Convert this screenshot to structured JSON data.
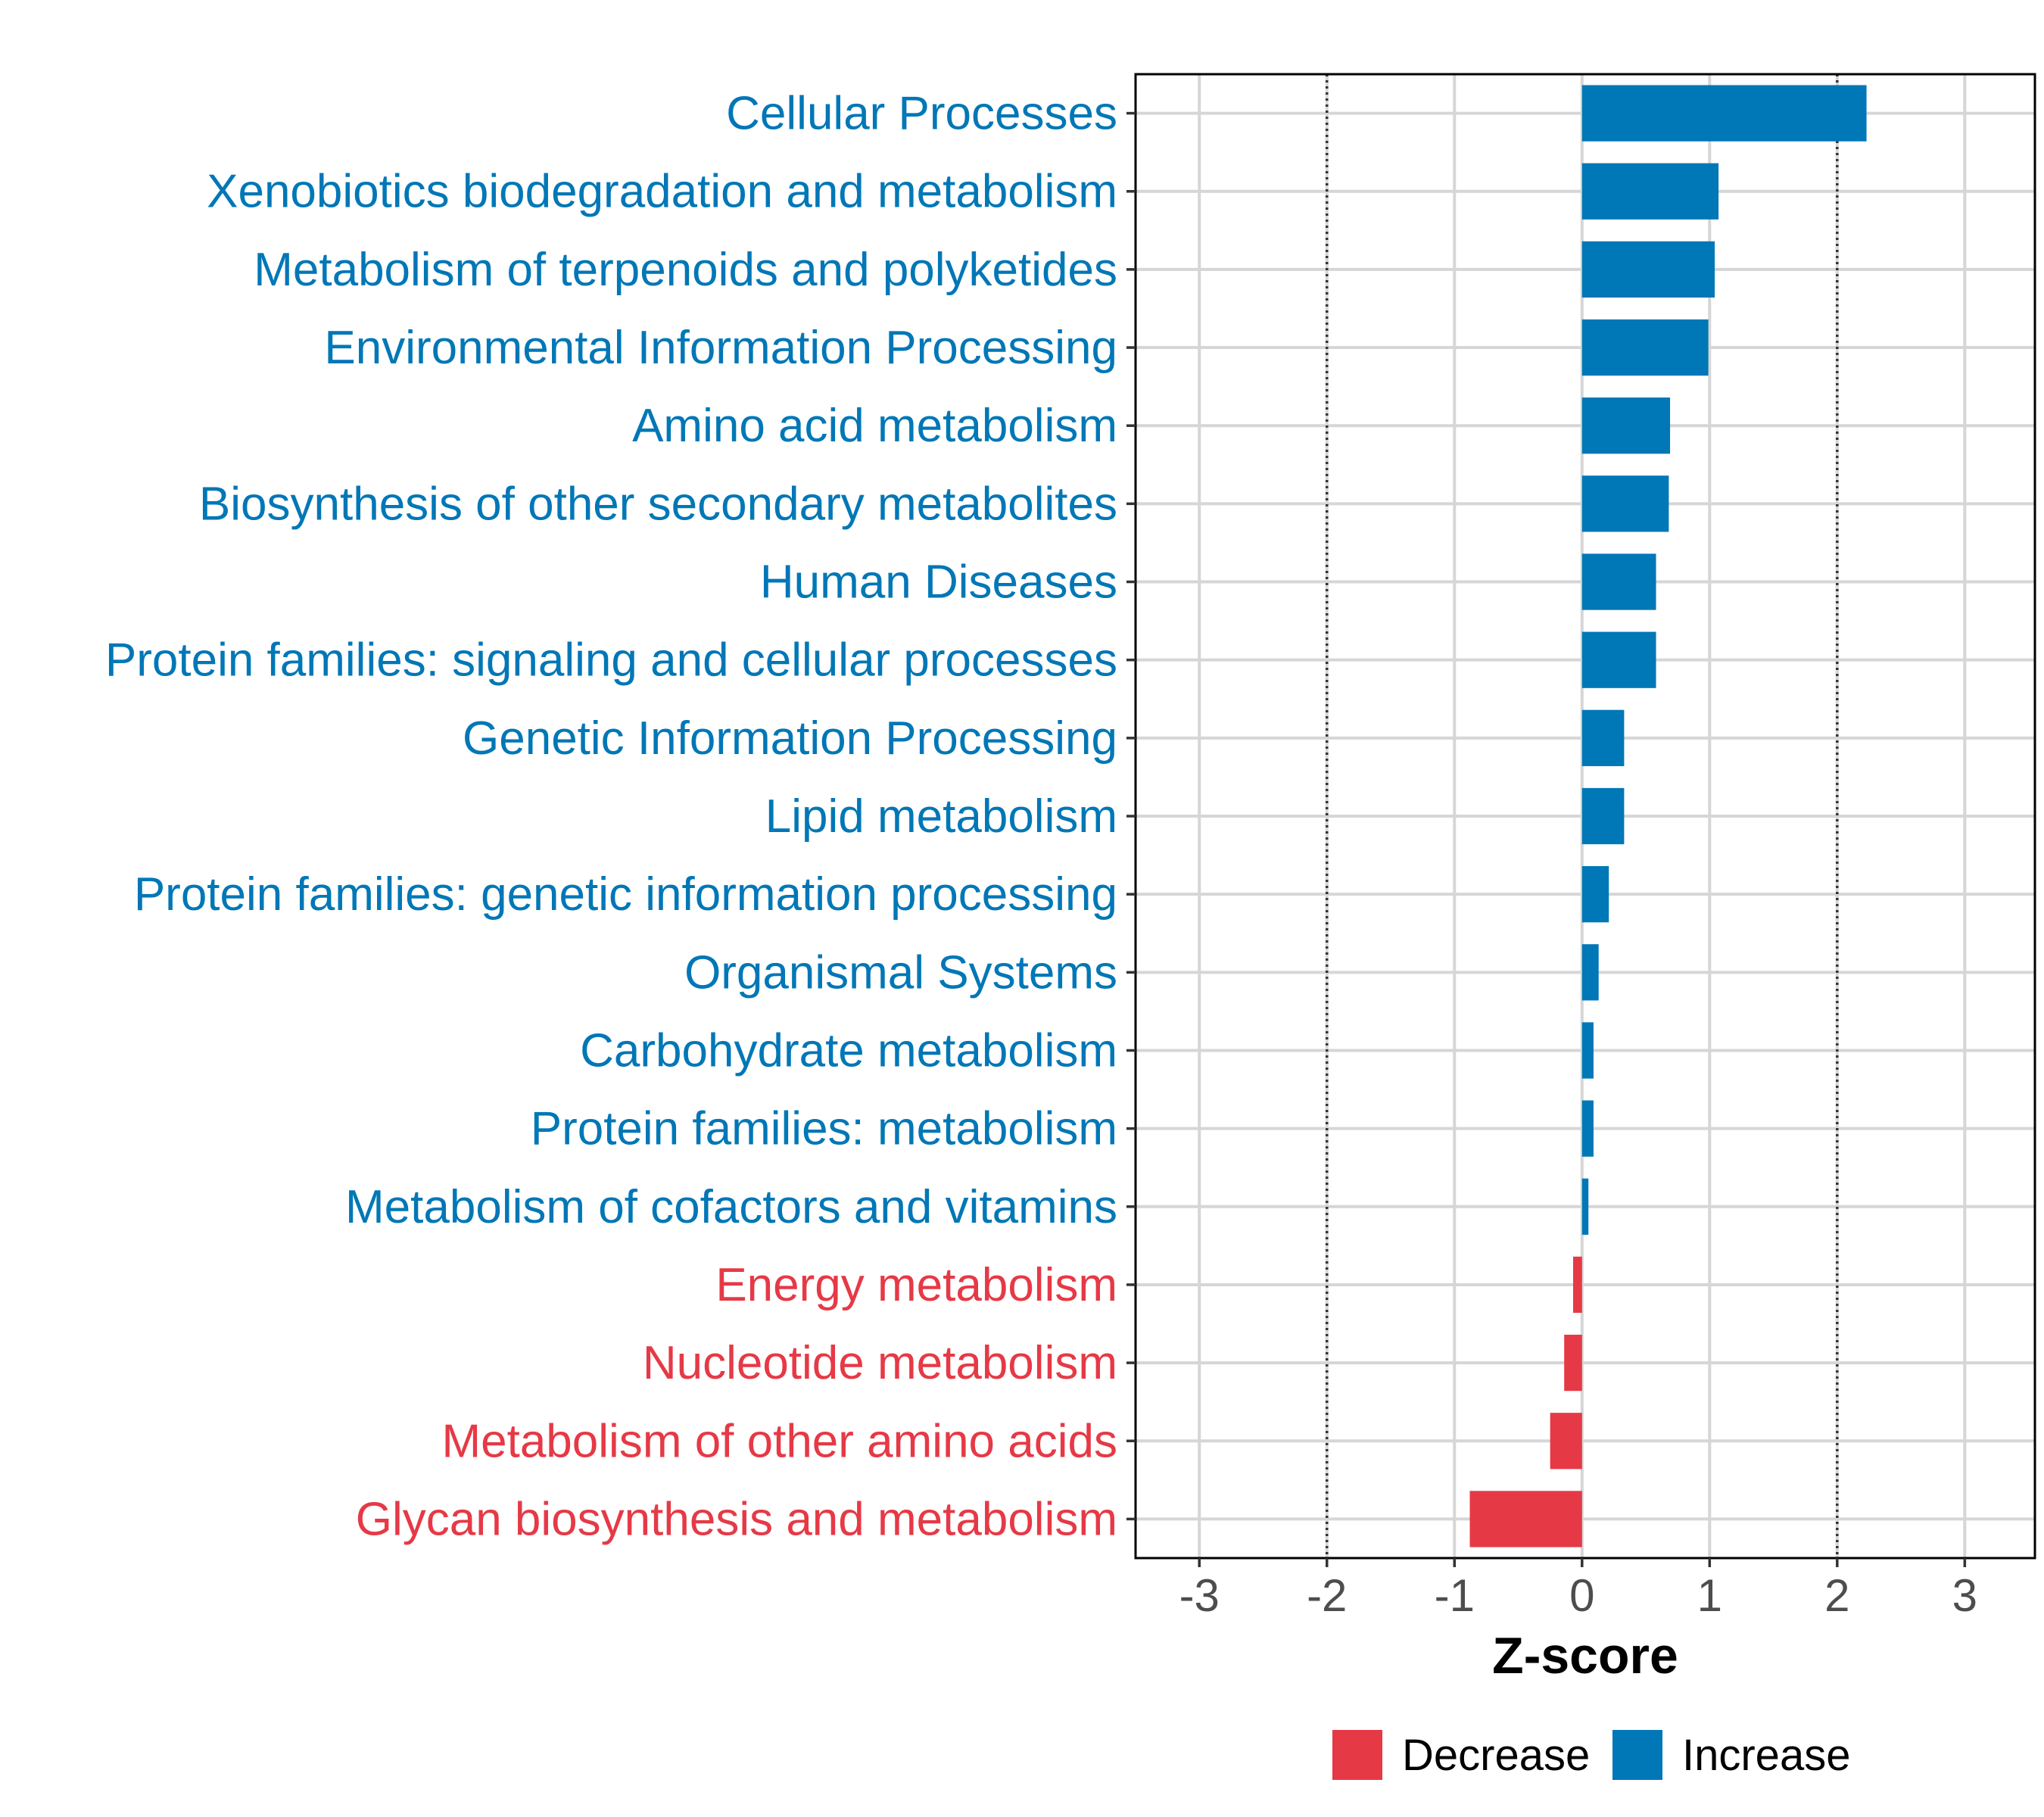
{
  "chart_data": {
    "type": "bar",
    "orientation": "horizontal",
    "xlabel": "Z-score",
    "ylabel": "",
    "xlim": [
      -3.5,
      3.55
    ],
    "xticks": [
      -3,
      -2,
      -1,
      0,
      1,
      2,
      3
    ],
    "reference_lines": [
      -2,
      2
    ],
    "grid": true,
    "legend_position": "bottom",
    "colors": {
      "Decrease": "#e63946",
      "Increase": "#0077b6"
    },
    "legend": [
      {
        "label": "Decrease",
        "color": "#e63946"
      },
      {
        "label": "Increase",
        "color": "#0077b6"
      }
    ],
    "categories": [
      "Cellular Processes",
      "Xenobiotics biodegradation and metabolism",
      "Metabolism of terpenoids and polyketides",
      "Environmental Information Processing",
      "Amino acid metabolism",
      "Biosynthesis of other secondary metabolites",
      "Human Diseases",
      "Protein families: signaling and cellular processes",
      "Genetic Information Processing",
      "Lipid metabolism",
      "Protein families: genetic information processing",
      "Organismal Systems",
      "Carbohydrate metabolism",
      "Protein families: metabolism",
      "Metabolism of cofactors and vitamins",
      "Energy metabolism",
      "Nucleotide metabolism",
      "Metabolism of other amino acids",
      "Glycan biosynthesis and metabolism"
    ],
    "values": [
      2.23,
      1.07,
      1.04,
      0.99,
      0.69,
      0.68,
      0.58,
      0.58,
      0.33,
      0.33,
      0.21,
      0.13,
      0.09,
      0.09,
      0.05,
      -0.07,
      -0.14,
      -0.25,
      -0.88
    ],
    "groups": [
      "Increase",
      "Increase",
      "Increase",
      "Increase",
      "Increase",
      "Increase",
      "Increase",
      "Increase",
      "Increase",
      "Increase",
      "Increase",
      "Increase",
      "Increase",
      "Increase",
      "Increase",
      "Decrease",
      "Decrease",
      "Decrease",
      "Decrease"
    ]
  }
}
